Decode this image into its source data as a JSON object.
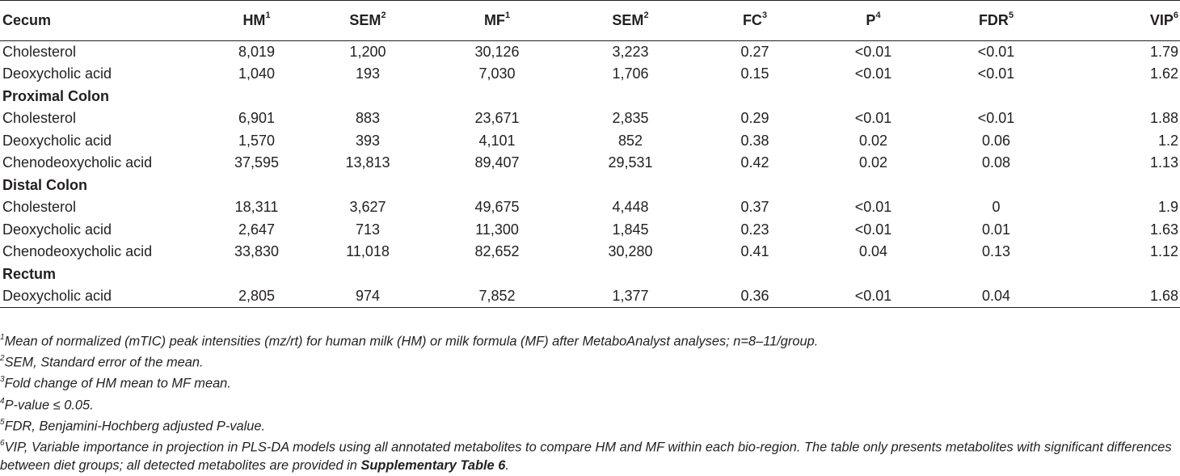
{
  "table": {
    "headers": [
      {
        "label": "Cecum",
        "sup": ""
      },
      {
        "label": "HM",
        "sup": "1"
      },
      {
        "label": "SEM",
        "sup": "2"
      },
      {
        "label": "MF",
        "sup": "1"
      },
      {
        "label": "SEM",
        "sup": "2"
      },
      {
        "label": "FC",
        "sup": "3"
      },
      {
        "label": "P",
        "sup": "4"
      },
      {
        "label": "FDR",
        "sup": "5"
      },
      {
        "label": "VIP",
        "sup": "6"
      }
    ],
    "rows": [
      {
        "type": "data",
        "cells": [
          "Cholesterol",
          "8,019",
          "1,200",
          "30,126",
          "3,223",
          "0.27",
          "<0.01",
          "<0.01",
          "1.79"
        ]
      },
      {
        "type": "data",
        "cells": [
          "Deoxycholic acid",
          "1,040",
          "193",
          "7,030",
          "1,706",
          "0.15",
          "<0.01",
          "<0.01",
          "1.62"
        ]
      },
      {
        "type": "section",
        "label": "Proximal Colon"
      },
      {
        "type": "data",
        "cells": [
          "Cholesterol",
          "6,901",
          "883",
          "23,671",
          "2,835",
          "0.29",
          "<0.01",
          "<0.01",
          "1.88"
        ]
      },
      {
        "type": "data",
        "cells": [
          "Deoxycholic acid",
          "1,570",
          "393",
          "4,101",
          "852",
          "0.38",
          "0.02",
          "0.06",
          "1.2"
        ]
      },
      {
        "type": "data",
        "cells": [
          "Chenodeoxycholic acid",
          "37,595",
          "13,813",
          "89,407",
          "29,531",
          "0.42",
          "0.02",
          "0.08",
          "1.13"
        ]
      },
      {
        "type": "section",
        "label": "Distal Colon"
      },
      {
        "type": "data",
        "cells": [
          "Cholesterol",
          "18,311",
          "3,627",
          "49,675",
          "4,448",
          "0.37",
          "<0.01",
          "0",
          "1.9"
        ]
      },
      {
        "type": "data",
        "cells": [
          "Deoxycholic acid",
          "2,647",
          "713",
          "11,300",
          "1,845",
          "0.23",
          "<0.01",
          "0.01",
          "1.63"
        ]
      },
      {
        "type": "data",
        "cells": [
          "Chenodeoxycholic acid",
          "33,830",
          "11,018",
          "82,652",
          "30,280",
          "0.41",
          "0.04",
          "0.13",
          "1.12"
        ]
      },
      {
        "type": "section",
        "label": "Rectum"
      },
      {
        "type": "data",
        "cells": [
          "Deoxycholic acid",
          "2,805",
          "974",
          "7,852",
          "1,377",
          "0.36",
          "<0.01",
          "0.04",
          "1.68"
        ]
      }
    ]
  },
  "footnotes": [
    {
      "sup": "1",
      "text": "Mean of normalized (mTIC) peak intensities (mz/rt) for human milk (HM) or milk formula (MF) after MetaboAnalyst analyses; n=8–11/group."
    },
    {
      "sup": "2",
      "text": "SEM, Standard error of the mean."
    },
    {
      "sup": "3",
      "text": "Fold change of HM mean to MF mean."
    },
    {
      "sup": "4",
      "text": "P-value ≤ 0.05."
    },
    {
      "sup": "5",
      "text": "FDR, Benjamini-Hochberg adjusted P-value."
    },
    {
      "sup": "6",
      "text": "VIP, Variable importance in projection in PLS-DA models using all annotated metabolites to compare HM and MF within each bio-region. The table only presents metabolites with significant differences between diet groups; all detected metabolites are provided in ",
      "bold": "Supplementary Table 6",
      "after": "."
    }
  ]
}
